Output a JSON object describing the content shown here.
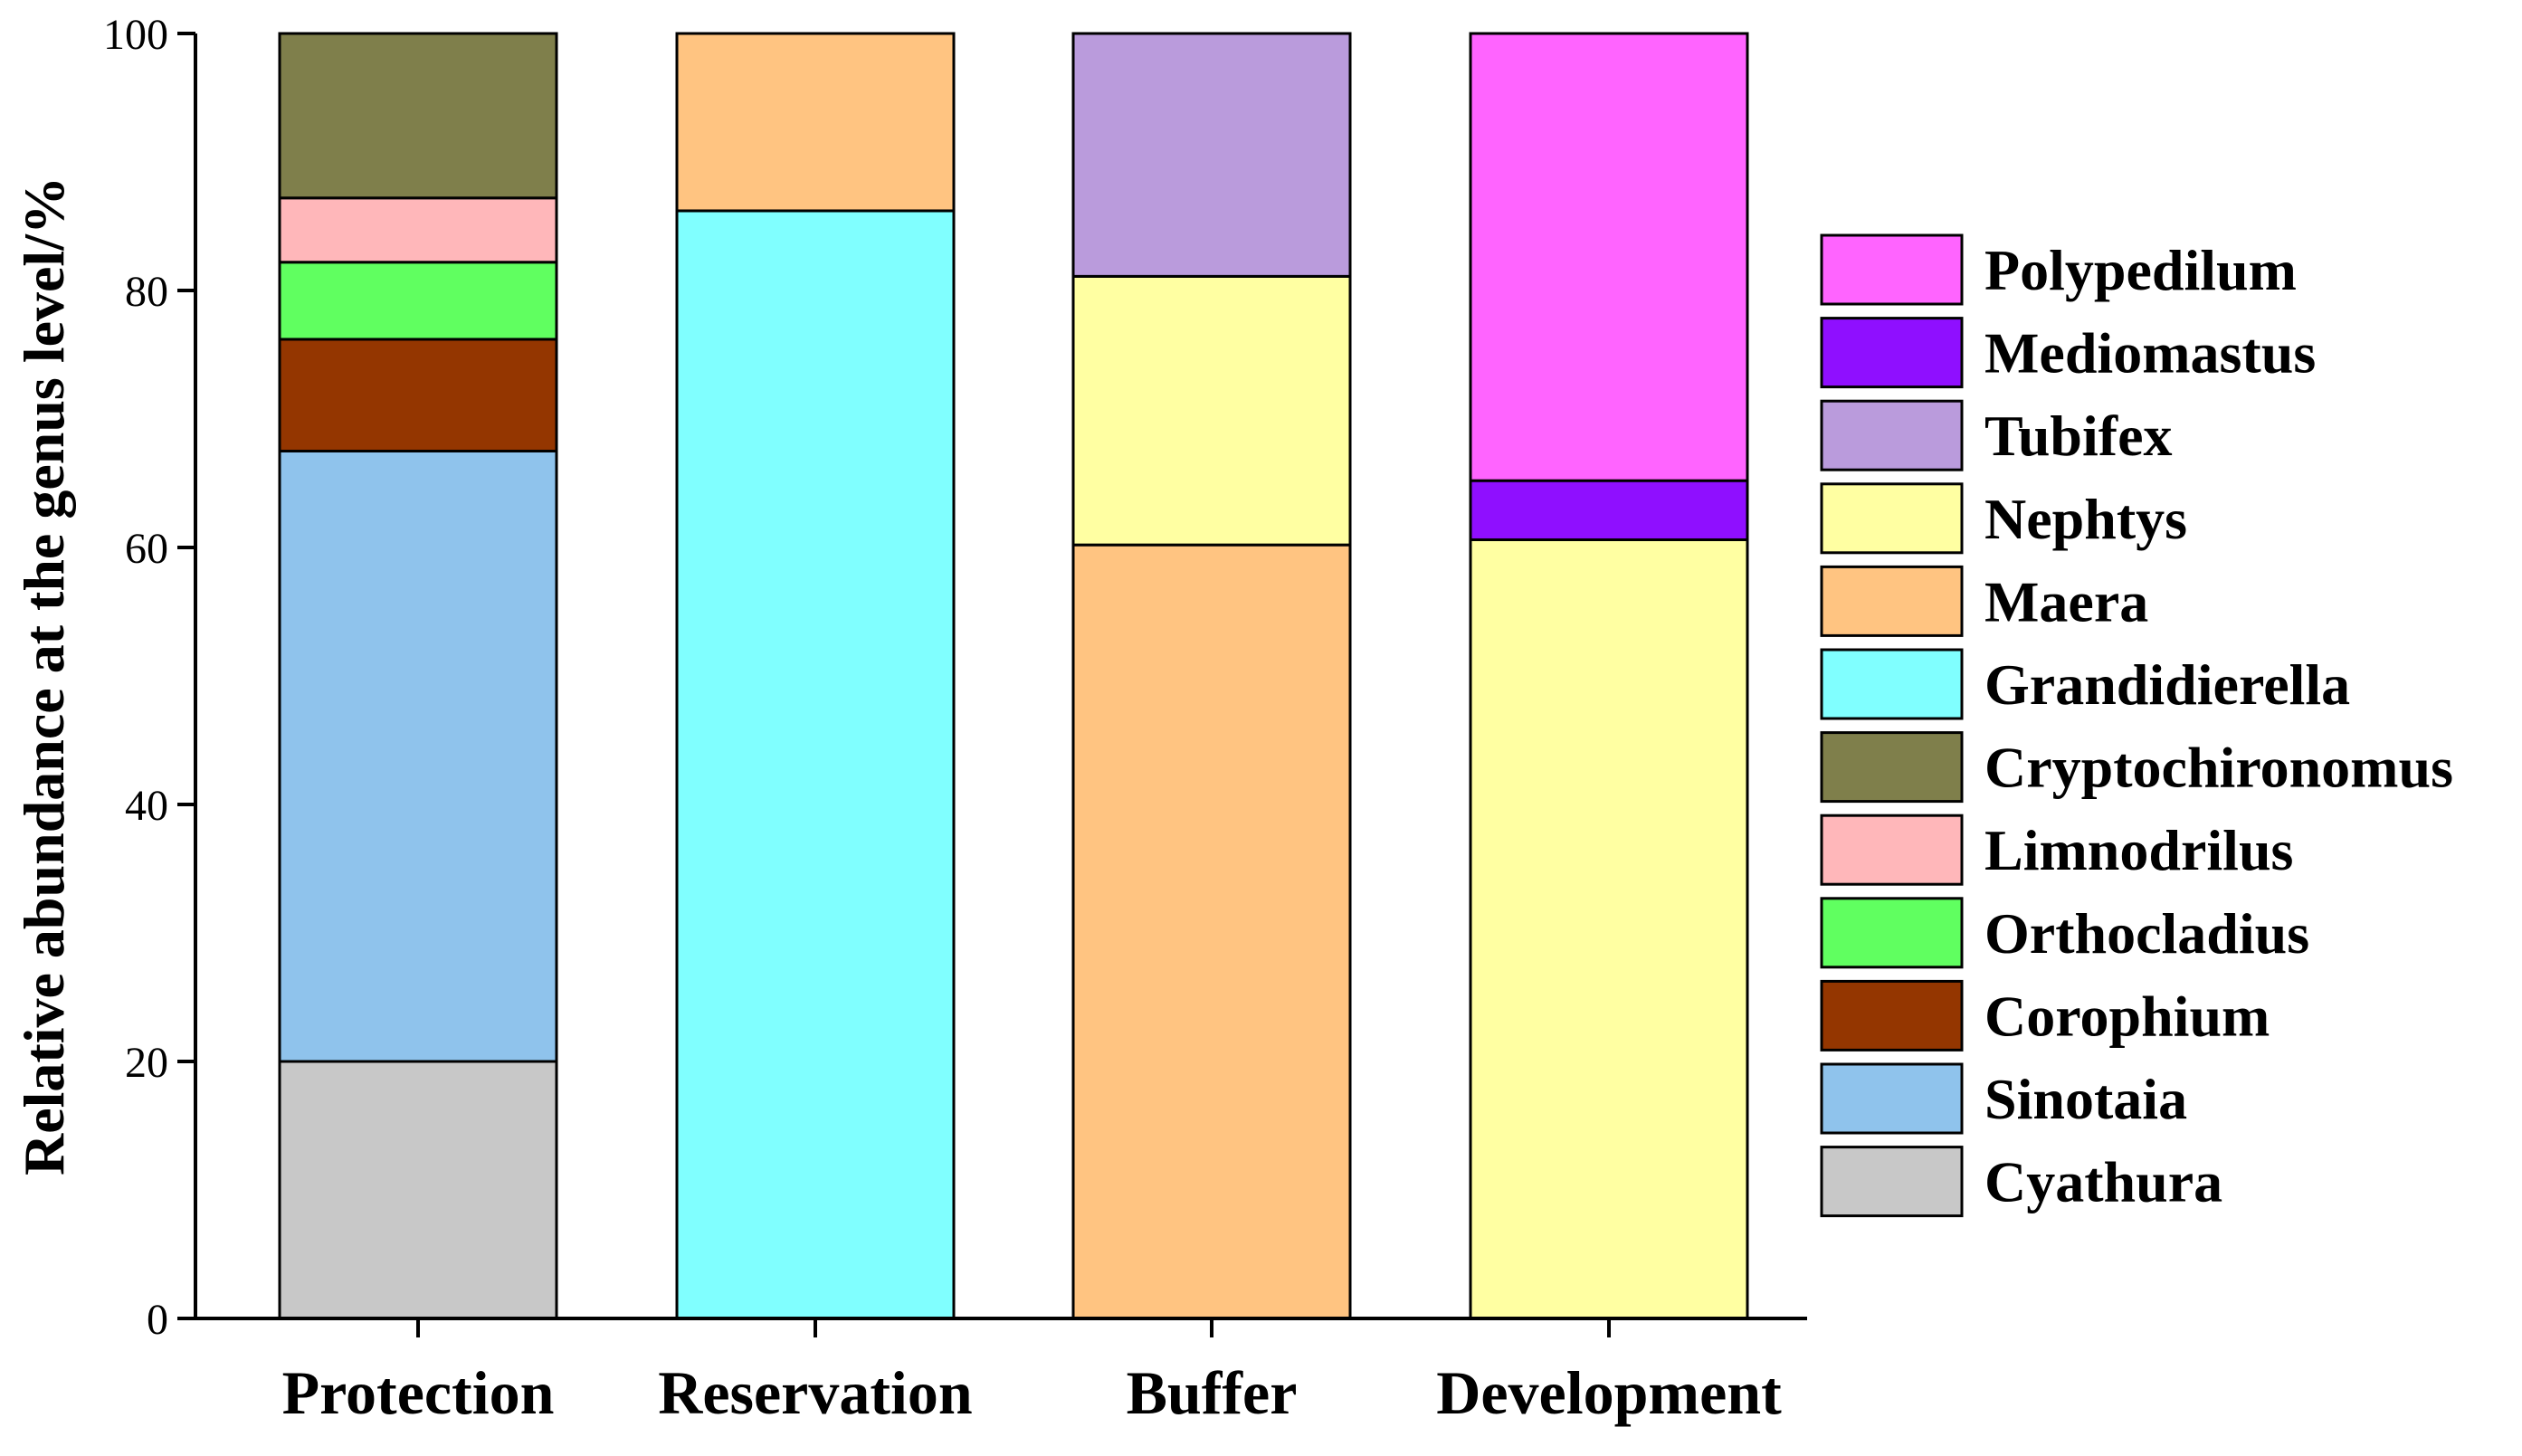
{
  "chart_data": {
    "type": "bar",
    "stacked": true,
    "title": "",
    "xlabel": "",
    "ylabel": "Relative abundance at the genus level/%",
    "ylim": [
      0,
      100
    ],
    "yticks": [
      "0",
      "20",
      "40",
      "60",
      "80",
      "100"
    ],
    "categories": [
      "Protection",
      "Reservation",
      "Buffer",
      "Development"
    ],
    "legend_position": "right",
    "series": [
      {
        "name": "Cyathura",
        "color": "#C8C8C8",
        "values": [
          20,
          0,
          0,
          0
        ]
      },
      {
        "name": "Sinotaia",
        "color": "#8FC3EC",
        "values": [
          47.5,
          0,
          0,
          0
        ]
      },
      {
        "name": "Corophium",
        "color": "#943600",
        "values": [
          8.7,
          0,
          0,
          0
        ]
      },
      {
        "name": "Orthocladius",
        "color": "#60FF60",
        "values": [
          6,
          0,
          0,
          0
        ]
      },
      {
        "name": "Limnodrilus",
        "color": "#FFB7BA",
        "values": [
          5,
          0,
          0,
          0
        ]
      },
      {
        "name": "Cryptochironomus",
        "color": "#7F7F4B",
        "values": [
          12.8,
          0,
          0,
          0
        ]
      },
      {
        "name": "Grandidierella",
        "color": "#80FFFF",
        "values": [
          0,
          86.2,
          0,
          0
        ]
      },
      {
        "name": "Maera",
        "color": "#FFC481",
        "values": [
          0,
          13.8,
          60.2,
          0
        ]
      },
      {
        "name": "Nephtys",
        "color": "#FFFFA2",
        "values": [
          0,
          0,
          20.9,
          60.6
        ]
      },
      {
        "name": "Tubifex",
        "color": "#BA9BDC",
        "values": [
          0,
          0,
          18.9,
          0
        ]
      },
      {
        "name": "Mediomastus",
        "color": "#8F0FFF",
        "values": [
          0,
          0,
          0,
          4.6
        ]
      },
      {
        "name": "Polypedilum",
        "color": "#FF64FF",
        "values": [
          0,
          0,
          0,
          34.8
        ]
      }
    ],
    "legend_order": [
      "Polypedilum",
      "Mediomastus",
      "Tubifex",
      "Nephtys",
      "Maera",
      "Grandidierella",
      "Cryptochironomus",
      "Limnodrilus",
      "Orthocladius",
      "Corophium",
      "Sinotaia",
      "Cyathura"
    ]
  }
}
